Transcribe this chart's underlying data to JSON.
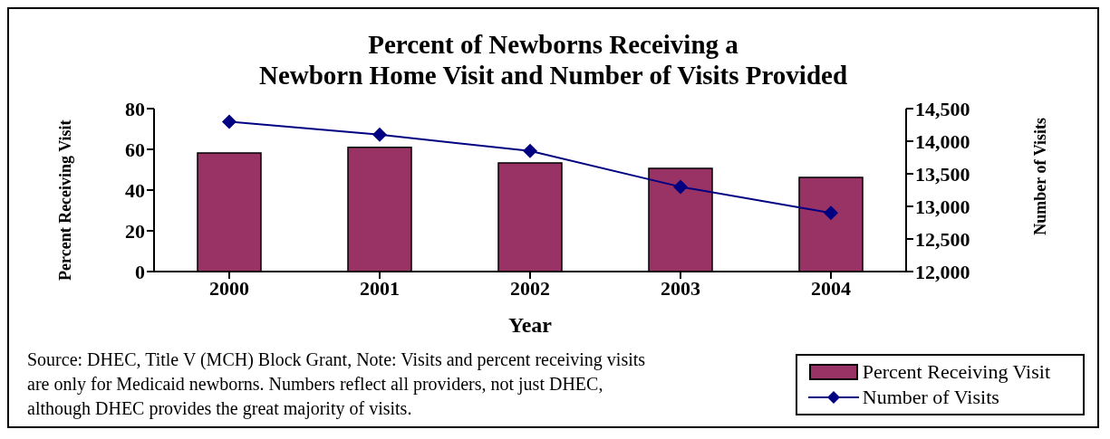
{
  "chart_data": {
    "type": "bar",
    "title": "Percent of Newborns Receiving a\nNewborn Home Visit and Number of Visits Provided",
    "xlabel": "Year",
    "ylabel": "Percent Receiving Visit",
    "y2label": "Number of Visits",
    "categories": [
      "2000",
      "2001",
      "2002",
      "2003",
      "2004"
    ],
    "series": [
      {
        "name": "Percent Receiving Visit",
        "color": "#993366",
        "values": [
          58.2,
          61,
          53.3,
          50.7,
          46.2
        ]
      },
      {
        "name": "Number of Visits",
        "type": "line",
        "axis": "y2",
        "color": "#000080",
        "marker": "diamond",
        "values": [
          14300,
          14100,
          13850,
          13300,
          12900
        ]
      }
    ],
    "ylim": [
      0,
      80
    ],
    "yticks": [
      0,
      20,
      40,
      60,
      80
    ],
    "y2lim": [
      12000,
      14500
    ],
    "y2ticks": [
      {
        "value": 12000,
        "label": "12,000"
      },
      {
        "value": 12500,
        "label": "12,500"
      },
      {
        "value": 13000,
        "label": "13,000"
      },
      {
        "value": 13500,
        "label": "13,500"
      },
      {
        "value": 14000,
        "label": "14,000"
      },
      {
        "value": 14500,
        "label": "14,500"
      }
    ],
    "legend": "bottom right",
    "annotations": [
      "Source: DHEC, Title V (MCH) Block Grant,  Note: Visits and percent receiving visits are only for Medicaid newborns.  Numbers reflect all providers, not just DHEC, although DHEC provides the great majority of visits."
    ]
  }
}
